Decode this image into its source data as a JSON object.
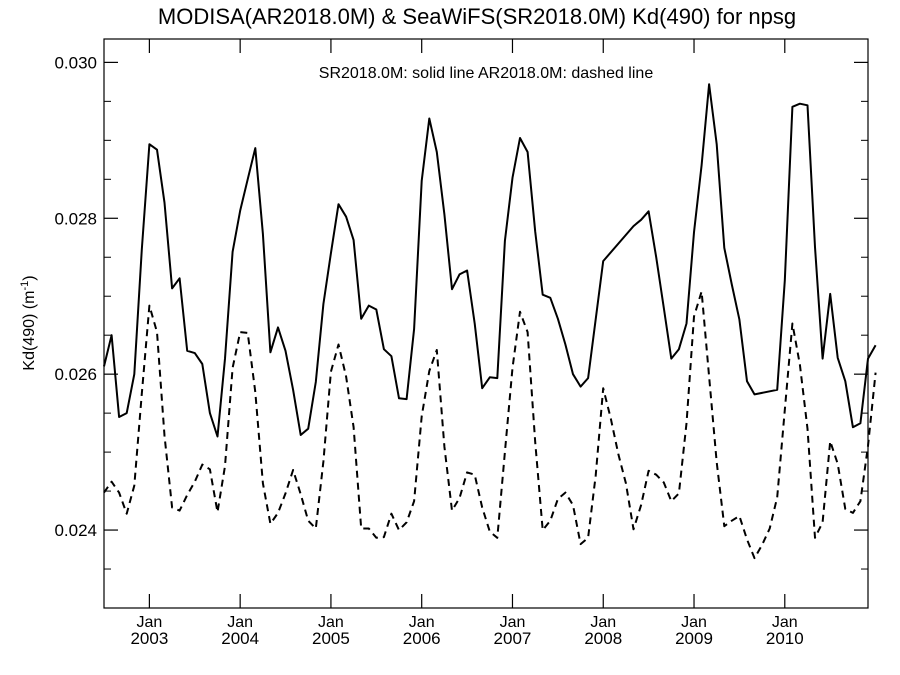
{
  "chart_data": {
    "type": "line",
    "title": "MODISA(AR2018.0M) & SeaWiFS(SR2018.0M)  Kd(490) for npsg",
    "ylabel_main": "Kd(490) (m",
    "ylabel_sup": "-1",
    "ylabel_close": ")",
    "xlabel": "",
    "annotation": "SR2018.0M: solid line   AR2018.0M: dashed line",
    "ylim": [
      0.023,
      0.0303
    ],
    "xlim": [
      "2002-07",
      "2010-12"
    ],
    "yticks": [
      {
        "value": 0.024,
        "label": "0.024"
      },
      {
        "value": 0.026,
        "label": "0.026"
      },
      {
        "value": 0.028,
        "label": "0.028"
      },
      {
        "value": 0.03,
        "label": "0.030"
      }
    ],
    "yminor": [
      0.0235,
      0.0245,
      0.025,
      0.0255,
      0.0265,
      0.027,
      0.0275,
      0.0285,
      0.029,
      0.0295
    ],
    "xticks": [
      {
        "date": "2003-01",
        "month": "Jan",
        "year": "2003"
      },
      {
        "date": "2004-01",
        "month": "Jan",
        "year": "2004"
      },
      {
        "date": "2005-01",
        "month": "Jan",
        "year": "2005"
      },
      {
        "date": "2006-01",
        "month": "Jan",
        "year": "2006"
      },
      {
        "date": "2007-01",
        "month": "Jan",
        "year": "2007"
      },
      {
        "date": "2008-01",
        "month": "Jan",
        "year": "2008"
      },
      {
        "date": "2009-01",
        "month": "Jan",
        "year": "2009"
      },
      {
        "date": "2010-01",
        "month": "Jan",
        "year": "2010"
      }
    ],
    "grid": false,
    "series": [
      {
        "name": "SR2018.0M",
        "style": "solid",
        "color": "#000000",
        "points": [
          [
            "2002-07",
            0.0261
          ],
          [
            "2002-08",
            0.0265
          ],
          [
            "2002-09",
            0.02545
          ],
          [
            "2002-10",
            0.0255
          ],
          [
            "2002-11",
            0.026
          ],
          [
            "2002-12",
            0.0276
          ],
          [
            "2003-01",
            0.02895
          ],
          [
            "2003-02",
            0.02888
          ],
          [
            "2003-03",
            0.0282
          ],
          [
            "2003-04",
            0.0271
          ],
          [
            "2003-05",
            0.02723
          ],
          [
            "2003-06",
            0.0263
          ],
          [
            "2003-07",
            0.02627
          ],
          [
            "2003-08",
            0.02613
          ],
          [
            "2003-09",
            0.0255
          ],
          [
            "2003-10",
            0.0252
          ],
          [
            "2003-11",
            0.0262
          ],
          [
            "2003-12",
            0.02757
          ],
          [
            "2004-01",
            0.0281
          ],
          [
            "2004-02",
            0.0285
          ],
          [
            "2004-03",
            0.0289
          ],
          [
            "2004-04",
            0.0278
          ],
          [
            "2004-05",
            0.02628
          ],
          [
            "2004-06",
            0.0266
          ],
          [
            "2004-07",
            0.0263
          ],
          [
            "2004-08",
            0.0258
          ],
          [
            "2004-09",
            0.02522
          ],
          [
            "2004-10",
            0.0253
          ],
          [
            "2004-11",
            0.0259
          ],
          [
            "2004-12",
            0.0269
          ],
          [
            "2005-01",
            0.02755
          ],
          [
            "2005-02",
            0.02818
          ],
          [
            "2005-03",
            0.02802
          ],
          [
            "2005-04",
            0.02772
          ],
          [
            "2005-05",
            0.02671
          ],
          [
            "2005-06",
            0.02688
          ],
          [
            "2005-07",
            0.02683
          ],
          [
            "2005-08",
            0.02632
          ],
          [
            "2005-09",
            0.02623
          ],
          [
            "2005-10",
            0.02569
          ],
          [
            "2005-11",
            0.02568
          ],
          [
            "2005-12",
            0.02658
          ],
          [
            "2006-01",
            0.02848
          ],
          [
            "2006-02",
            0.02928
          ],
          [
            "2006-03",
            0.02885
          ],
          [
            "2006-04",
            0.02805
          ],
          [
            "2006-05",
            0.02709
          ],
          [
            "2006-06",
            0.02728
          ],
          [
            "2006-07",
            0.02733
          ],
          [
            "2006-08",
            0.02665
          ],
          [
            "2006-09",
            0.02582
          ],
          [
            "2006-10",
            0.02596
          ],
          [
            "2006-11",
            0.02595
          ],
          [
            "2006-12",
            0.02771
          ],
          [
            "2007-01",
            0.02852
          ],
          [
            "2007-02",
            0.02903
          ],
          [
            "2007-03",
            0.02885
          ],
          [
            "2007-04",
            0.02783
          ],
          [
            "2007-05",
            0.02702
          ],
          [
            "2007-06",
            0.02698
          ],
          [
            "2007-07",
            0.02671
          ],
          [
            "2007-08",
            0.02638
          ],
          [
            "2007-09",
            0.026
          ],
          [
            "2007-10",
            0.02584
          ],
          [
            "2007-11",
            0.02595
          ],
          [
            "2008-01",
            0.02745
          ],
          [
            "2008-05",
            0.0279
          ],
          [
            "2008-06",
            0.02798
          ],
          [
            "2008-07",
            0.02809
          ],
          [
            "2008-08",
            0.0275
          ],
          [
            "2008-09",
            0.02685
          ],
          [
            "2008-10",
            0.0262
          ],
          [
            "2008-11",
            0.02632
          ],
          [
            "2008-12",
            0.02665
          ],
          [
            "2009-01",
            0.02782
          ],
          [
            "2009-02",
            0.02868
          ],
          [
            "2009-03",
            0.02972
          ],
          [
            "2009-04",
            0.02895
          ],
          [
            "2009-05",
            0.02762
          ],
          [
            "2009-06",
            0.02715
          ],
          [
            "2009-07",
            0.0267
          ],
          [
            "2009-08",
            0.02591
          ],
          [
            "2009-09",
            0.02574
          ],
          [
            "2009-12",
            0.0258
          ],
          [
            "2010-01",
            0.0272
          ],
          [
            "2010-02",
            0.02943
          ],
          [
            "2010-03",
            0.02947
          ],
          [
            "2010-04",
            0.02945
          ],
          [
            "2010-05",
            0.02763
          ],
          [
            "2010-06",
            0.0262
          ],
          [
            "2010-07",
            0.02703
          ],
          [
            "2010-08",
            0.02621
          ],
          [
            "2010-09",
            0.02591
          ],
          [
            "2010-10",
            0.02532
          ],
          [
            "2010-11",
            0.02537
          ],
          [
            "2010-12",
            0.0262
          ],
          [
            "2011-01",
            0.02637
          ]
        ]
      },
      {
        "name": "AR2018.0M",
        "style": "dashed",
        "color": "#000000",
        "points": [
          [
            "2002-07",
            0.02448
          ],
          [
            "2002-08",
            0.02462
          ],
          [
            "2002-09",
            0.02448
          ],
          [
            "2002-10",
            0.02421
          ],
          [
            "2002-11",
            0.02457
          ],
          [
            "2002-12",
            0.02575
          ],
          [
            "2003-01",
            0.02688
          ],
          [
            "2003-02",
            0.02654
          ],
          [
            "2003-03",
            0.02521
          ],
          [
            "2003-04",
            0.02429
          ],
          [
            "2003-05",
            0.02425
          ],
          [
            "2003-06",
            0.02445
          ],
          [
            "2003-07",
            0.02462
          ],
          [
            "2003-08",
            0.02484
          ],
          [
            "2003-09",
            0.02478
          ],
          [
            "2003-10",
            0.02423
          ],
          [
            "2003-11",
            0.02482
          ],
          [
            "2003-12",
            0.02608
          ],
          [
            "2004-01",
            0.02654
          ],
          [
            "2004-02",
            0.02653
          ],
          [
            "2004-03",
            0.02577
          ],
          [
            "2004-04",
            0.0246
          ],
          [
            "2004-05",
            0.02408
          ],
          [
            "2004-06",
            0.02422
          ],
          [
            "2004-07",
            0.02447
          ],
          [
            "2004-08",
            0.02477
          ],
          [
            "2004-09",
            0.02446
          ],
          [
            "2004-10",
            0.02412
          ],
          [
            "2004-11",
            0.02402
          ],
          [
            "2004-12",
            0.02488
          ],
          [
            "2005-01",
            0.02603
          ],
          [
            "2005-02",
            0.02638
          ],
          [
            "2005-03",
            0.02597
          ],
          [
            "2005-04",
            0.02532
          ],
          [
            "2005-05",
            0.02402
          ],
          [
            "2005-06",
            0.02402
          ],
          [
            "2005-07",
            0.0239
          ],
          [
            "2005-08",
            0.02391
          ],
          [
            "2005-09",
            0.02421
          ],
          [
            "2005-10",
            0.024
          ],
          [
            "2005-11",
            0.0241
          ],
          [
            "2005-12",
            0.02437
          ],
          [
            "2006-01",
            0.02546
          ],
          [
            "2006-02",
            0.02604
          ],
          [
            "2006-03",
            0.02631
          ],
          [
            "2006-04",
            0.02507
          ],
          [
            "2006-05",
            0.02425
          ],
          [
            "2006-06",
            0.02441
          ],
          [
            "2006-07",
            0.02474
          ],
          [
            "2006-08",
            0.02471
          ],
          [
            "2006-09",
            0.02429
          ],
          [
            "2006-10",
            0.02398
          ],
          [
            "2006-11",
            0.0239
          ],
          [
            "2006-12",
            0.025
          ],
          [
            "2007-01",
            0.02608
          ],
          [
            "2007-02",
            0.0268
          ],
          [
            "2007-03",
            0.02654
          ],
          [
            "2007-04",
            0.02513
          ],
          [
            "2007-05",
            0.024
          ],
          [
            "2007-06",
            0.02412
          ],
          [
            "2007-07",
            0.0244
          ],
          [
            "2007-08",
            0.02448
          ],
          [
            "2007-09",
            0.02432
          ],
          [
            "2007-10",
            0.02382
          ],
          [
            "2007-11",
            0.0239
          ],
          [
            "2007-12",
            0.0247
          ],
          [
            "2008-01",
            0.02582
          ],
          [
            "2008-02",
            0.02543
          ],
          [
            "2008-03",
            0.02497
          ],
          [
            "2008-04",
            0.0246
          ],
          [
            "2008-05",
            0.02401
          ],
          [
            "2008-06",
            0.02432
          ],
          [
            "2008-07",
            0.02476
          ],
          [
            "2008-08",
            0.02471
          ],
          [
            "2008-09",
            0.02461
          ],
          [
            "2008-10",
            0.02437
          ],
          [
            "2008-11",
            0.02447
          ],
          [
            "2008-12",
            0.02537
          ],
          [
            "2009-01",
            0.02674
          ],
          [
            "2009-02",
            0.02706
          ],
          [
            "2009-03",
            0.02597
          ],
          [
            "2009-04",
            0.02487
          ],
          [
            "2009-05",
            0.02405
          ],
          [
            "2009-06",
            0.02412
          ],
          [
            "2009-07",
            0.02418
          ],
          [
            "2009-08",
            0.02388
          ],
          [
            "2009-09",
            0.02364
          ],
          [
            "2009-10",
            0.02381
          ],
          [
            "2009-11",
            0.02402
          ],
          [
            "2009-12",
            0.02442
          ],
          [
            "2010-01",
            0.02554
          ],
          [
            "2010-02",
            0.02665
          ],
          [
            "2010-03",
            0.02612
          ],
          [
            "2010-04",
            0.0253
          ],
          [
            "2010-05",
            0.0239
          ],
          [
            "2010-06",
            0.0241
          ],
          [
            "2010-07",
            0.02514
          ],
          [
            "2010-08",
            0.02485
          ],
          [
            "2010-09",
            0.02427
          ],
          [
            "2010-10",
            0.02422
          ],
          [
            "2010-11",
            0.02437
          ],
          [
            "2010-12",
            0.02508
          ],
          [
            "2011-01",
            0.02602
          ]
        ]
      }
    ]
  }
}
